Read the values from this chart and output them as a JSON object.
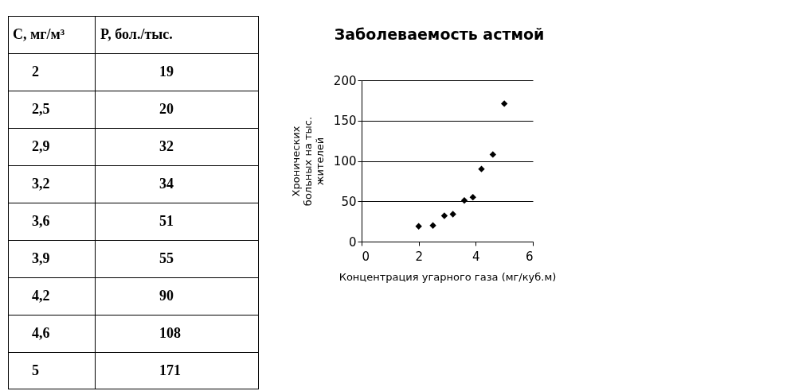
{
  "chart_data": [
    {
      "type": "other",
      "annotations": [
        "C, мг/м³",
        "P, бол./тыс.",
        "2",
        "19",
        "2,5",
        "20",
        "2,9",
        "32",
        "3,2",
        "34",
        "3,6",
        "51",
        "3,9",
        "55",
        "4,2",
        "90",
        "4,6",
        "108",
        "5",
        "171"
      ]
    },
    {
      "type": "scatter",
      "title": "Заболеваемость астмой",
      "xlabel": "Концентрация угарного газа (мг/куб.м)",
      "ylabel": "Хронических больных на тыс. жителей",
      "x": [
        2,
        2.5,
        2.9,
        3.2,
        3.6,
        3.9,
        4.2,
        4.6,
        5
      ],
      "values": [
        19,
        20,
        32,
        34,
        51,
        55,
        90,
        108,
        171
      ],
      "color": "#000000",
      "marker": "diamond",
      "grid": "y",
      "xlim": [
        0,
        6
      ],
      "xticks": [
        0,
        2,
        4,
        6
      ],
      "ylim": [
        0,
        200
      ],
      "yticks": [
        0,
        50,
        100,
        150,
        200
      ]
    }
  ]
}
